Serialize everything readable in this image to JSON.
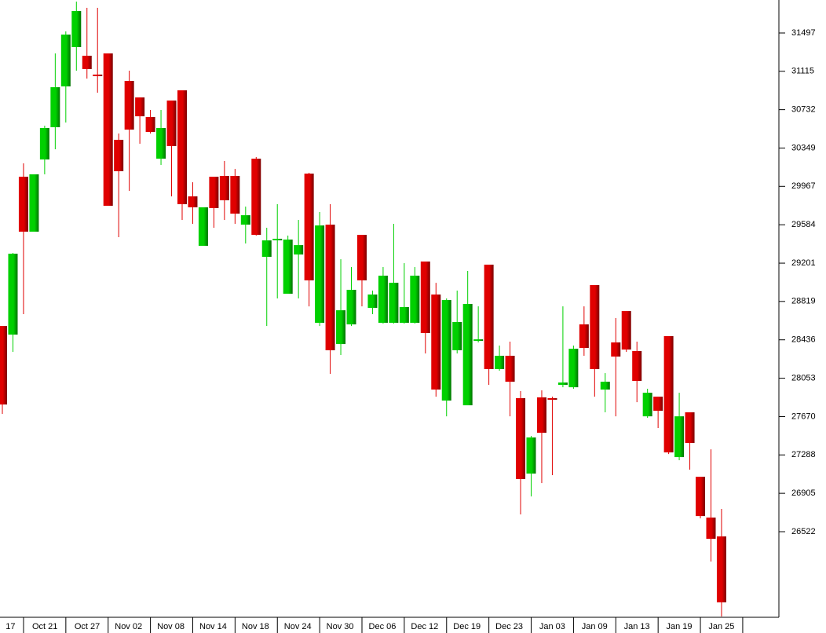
{
  "chart_data": {
    "type": "candlestick",
    "categories": [
      null,
      "17",
      null,
      null,
      null,
      "Oct 21",
      null,
      null,
      null,
      "Oct 27",
      null,
      null,
      null,
      "Nov 02",
      null,
      null,
      null,
      "Nov 08",
      null,
      null,
      null,
      "Nov 14",
      null,
      null,
      null,
      "Nov 18",
      null,
      null,
      null,
      "Nov 24",
      null,
      null,
      null,
      "Nov 30",
      null,
      null,
      null,
      "Dec 06",
      null,
      null,
      null,
      "Dec 12",
      null,
      null,
      null,
      "Dec 19",
      null,
      null,
      null,
      "Dec 23",
      null,
      null,
      null,
      "Jan 03",
      null,
      null,
      null,
      "Jan 09",
      null,
      null,
      null,
      "Jan 13",
      null,
      null,
      null,
      "Jan 19",
      null,
      null,
      null,
      "Jan 25"
    ],
    "open": [
      28574,
      28488,
      30063,
      29515,
      30235,
      30557,
      30964,
      31356,
      31270,
      31082,
      31293,
      30431,
      31019,
      30854,
      30659,
      30243,
      30823,
      30925,
      29867,
      29374,
      30063,
      30071,
      30071,
      29585,
      30243,
      29264,
      29436,
      28896,
      29287,
      30094,
      28606,
      29585,
      28394,
      28590,
      29483,
      28755,
      28606,
      28606,
      28606,
      28606,
      29217,
      28888,
      27830,
      28332,
      27783,
      28426,
      29186,
      28144,
      28277,
      27854,
      27102,
      27862,
      27854,
      27987,
      27963,
      28590,
      28982,
      27940,
      28410,
      28723,
      28324,
      27673,
      27869,
      28473,
      27266,
      27713,
      27070,
      26663,
      26475,
      null
    ],
    "high": [
      28574,
      29303,
      30196,
      30087,
      30572,
      31293,
      31513,
      31810,
      31748,
      31748,
      31293,
      30494,
      31121,
      30854,
      30729,
      30729,
      30823,
      30925,
      30008,
      29758,
      30063,
      30220,
      30141,
      29765,
      30259,
      29554,
      29789,
      29476,
      29632,
      30102,
      29711,
      29789,
      29240,
      29162,
      29483,
      28927,
      29162,
      29593,
      29201,
      29162,
      29217,
      29005,
      28849,
      28927,
      29123,
      28770,
      29186,
      28379,
      28418,
      27924,
      27478,
      27932,
      27869,
      28770,
      28379,
      28770,
      28982,
      28104,
      28653,
      28723,
      28418,
      27948,
      27869,
      28473,
      27908,
      27713,
      27070,
      27344,
      26749,
      null
    ],
    "low": [
      27697,
      28316,
      28692,
      29515,
      30087,
      30337,
      30604,
      31121,
      31042,
      30901,
      29773,
      29460,
      29922,
      30392,
      30494,
      30181,
      29867,
      29632,
      29593,
      29374,
      29554,
      29632,
      29593,
      29397,
      29476,
      28574,
      28849,
      28896,
      28849,
      28770,
      28574,
      28097,
      28285,
      28574,
      28770,
      28692,
      28598,
      28598,
      28598,
      28598,
      28300,
      27869,
      27673,
      28300,
      27783,
      28410,
      27987,
      28128,
      27673,
      26694,
      26874,
      27007,
      27086,
      27963,
      27948,
      28277,
      27869,
      27713,
      27673,
      28316,
      27814,
      27658,
      27556,
      27297,
      27235,
      27141,
      26655,
      26224,
      25676,
      null
    ],
    "close": [
      27791,
      29295,
      29515,
      30087,
      30549,
      30956,
      31481,
      31716,
      31137,
      31074,
      29773,
      30118,
      30533,
      30666,
      30510,
      30549,
      30369,
      29789,
      29758,
      29758,
      29750,
      29828,
      29695,
      29679,
      29483,
      29428,
      29444,
      29436,
      29381,
      29029,
      29577,
      28332,
      28731,
      28935,
      29029,
      28888,
      29076,
      29005,
      28763,
      29076,
      28504,
      27940,
      28833,
      28614,
      28794,
      28441,
      28144,
      28277,
      28018,
      27047,
      27462,
      27509,
      27838,
      28010,
      28347,
      28355,
      28144,
      28018,
      28269,
      28339,
      28026,
      27908,
      27728,
      27313,
      27673,
      27407,
      26678,
      26451,
      25817,
      null
    ],
    "up_color": "#00d000",
    "down_color": "#e00000",
    "ylim": [
      25676,
      31826
    ],
    "yticks": [
      31497,
      31115,
      30732,
      30349,
      29967,
      29584,
      29201,
      28819,
      28436,
      28053,
      27670,
      27288,
      26905,
      26522
    ]
  }
}
